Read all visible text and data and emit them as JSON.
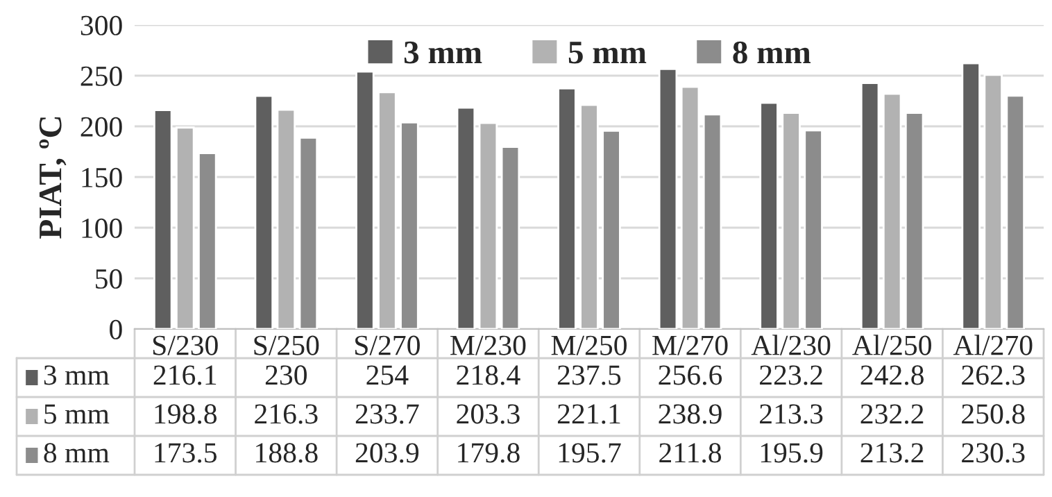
{
  "chart_data": {
    "type": "bar",
    "ylabel": "PIAT, ºC",
    "categories": [
      "S/230",
      "S/250",
      "S/270",
      "M/230",
      "M/250",
      "M/270",
      "Al/230",
      "Al/250",
      "Al/270"
    ],
    "series": [
      {
        "name": "3 mm",
        "color": "#5f5f5f",
        "values": [
          216.1,
          230,
          254,
          218.4,
          237.5,
          256.6,
          223.2,
          242.8,
          262.3
        ]
      },
      {
        "name": "5 mm",
        "color": "#b2b2b2",
        "values": [
          198.8,
          216.3,
          233.7,
          203.3,
          221.1,
          238.9,
          213.3,
          232.2,
          250.8
        ]
      },
      {
        "name": "8 mm",
        "color": "#8c8c8c",
        "values": [
          173.5,
          188.8,
          203.9,
          179.8,
          195.7,
          211.8,
          195.9,
          213.2,
          230.3
        ]
      }
    ],
    "ylim": [
      0,
      300
    ],
    "yticks": [
      0,
      50,
      100,
      150,
      200,
      250,
      300
    ],
    "grid": "y",
    "legend": "top",
    "data_labels": true
  }
}
